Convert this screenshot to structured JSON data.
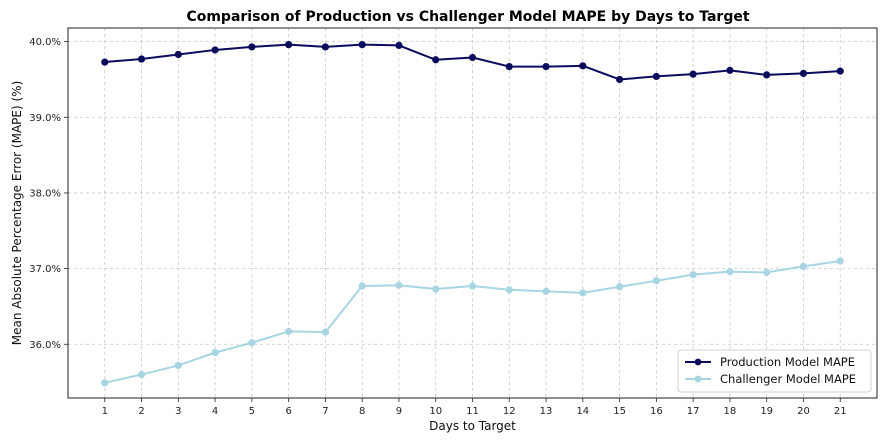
{
  "chart_data": {
    "type": "line",
    "title": "Comparison of Production vs Challenger Model MAPE by Days to Target",
    "xlabel": "Days to Target",
    "ylabel": "Mean Absolute Percentage Error (MAPE) (%)",
    "x": [
      1,
      2,
      3,
      4,
      5,
      6,
      7,
      8,
      9,
      10,
      11,
      12,
      13,
      14,
      15,
      16,
      17,
      18,
      19,
      20,
      21
    ],
    "xlim": [
      0,
      22
    ],
    "ylim": [
      35.29,
      40.18
    ],
    "yticks": [
      36.0,
      37.0,
      38.0,
      39.0,
      40.0
    ],
    "ytick_labels": [
      "36.0%",
      "37.0%",
      "38.0%",
      "39.0%",
      "40.0%"
    ],
    "grid": true,
    "legend_position": "bottom-right",
    "series": [
      {
        "name": "Production Model MAPE",
        "color": "#0b0b5e",
        "marker": "circle",
        "values": [
          39.73,
          39.77,
          39.83,
          39.89,
          39.93,
          39.96,
          39.93,
          39.96,
          39.95,
          39.76,
          39.79,
          39.67,
          39.67,
          39.68,
          39.5,
          39.54,
          39.57,
          39.62,
          39.56,
          39.58,
          39.61
        ]
      },
      {
        "name": "Challenger Model MAPE",
        "color": "#a8d5e2",
        "marker": "circle",
        "values": [
          35.49,
          35.6,
          35.72,
          35.89,
          36.02,
          36.17,
          36.16,
          36.77,
          36.78,
          36.73,
          36.77,
          36.72,
          36.7,
          36.68,
          36.76,
          36.84,
          36.92,
          36.96,
          36.95,
          37.03,
          37.1
        ]
      }
    ]
  }
}
